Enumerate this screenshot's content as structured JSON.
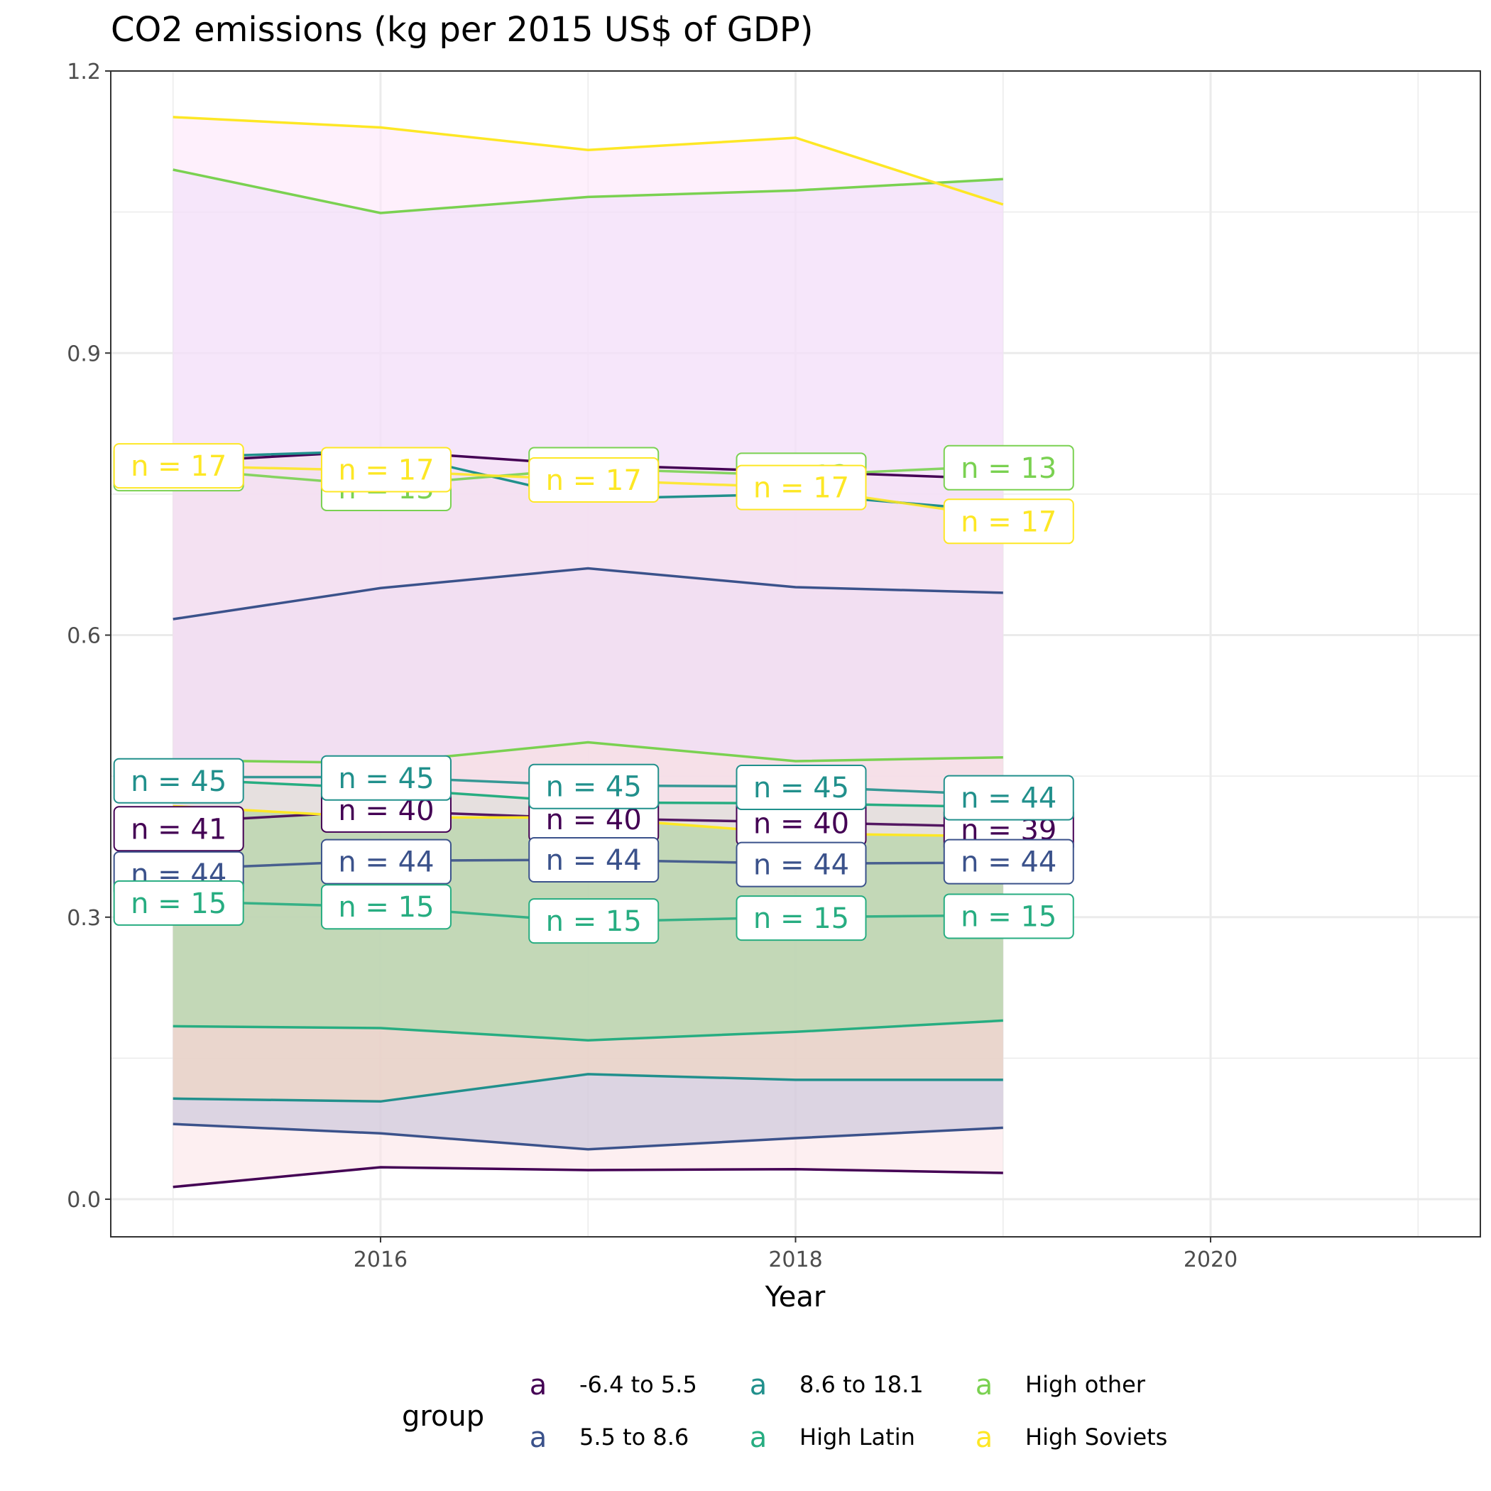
{
  "chart_data": {
    "type": "area",
    "title": "CO2 emissions (kg per 2015 US$ of GDP)",
    "xlabel": "Year",
    "ylabel": "",
    "xlim": [
      2014.7,
      2021.3
    ],
    "ylim": [
      -0.04,
      1.2
    ],
    "x_ticks": [
      2016,
      2018,
      2020
    ],
    "y_ticks": [
      0.0,
      0.3,
      0.6,
      0.9,
      1.2
    ],
    "y_tick_labels": [
      "0.0",
      "0.3",
      "0.6",
      "0.9",
      "1.2"
    ],
    "grid": true,
    "legend_position": "bottom",
    "legend_title": "group",
    "legend_key_glyph": "a",
    "x": [
      2015,
      2016,
      2017,
      2018,
      2019
    ],
    "series": [
      {
        "name": "-6.4 to 5.5",
        "color": "#440154",
        "fill": "#fbe4e8",
        "low": [
          0.013,
          0.034,
          0.031,
          0.032,
          0.028
        ],
        "mean": [
          0.401,
          0.413,
          0.405,
          0.401,
          0.396
        ],
        "high": [
          0.784,
          0.796,
          0.781,
          0.774,
          0.766
        ],
        "n_labels": [
          "n = 41",
          "n = 40",
          "n = 40",
          "n = 40",
          "n = 39"
        ],
        "n_label_y": [
          0.394,
          0.414,
          0.404,
          0.4,
          0.393
        ]
      },
      {
        "name": "5.5 to 8.6",
        "color": "#3b528b",
        "fill": "#c6c2d9",
        "low": [
          0.08,
          0.07,
          0.053,
          0.065,
          0.076
        ],
        "mean": [
          0.351,
          0.36,
          0.361,
          0.357,
          0.358
        ],
        "high": [
          0.617,
          0.65,
          0.671,
          0.651,
          0.645
        ],
        "n_labels": [
          "n = 44",
          "n = 44",
          "n = 44",
          "n = 44",
          "n = 44"
        ],
        "n_label_y": [
          0.346,
          0.359,
          0.361,
          0.356,
          0.359
        ]
      },
      {
        "name": "8.6 to 18.1",
        "color": "#21908c",
        "fill": "#f3d7bf",
        "low": [
          0.107,
          0.104,
          0.133,
          0.127,
          0.127
        ],
        "mean": [
          0.449,
          0.449,
          0.44,
          0.439,
          0.43
        ],
        "high": [
          0.789,
          0.796,
          0.745,
          0.75,
          0.732
        ],
        "n_labels": [
          "n = 45",
          "n = 45",
          "n = 45",
          "n = 45",
          "n = 44"
        ],
        "n_label_y": [
          0.445,
          0.448,
          0.439,
          0.438,
          0.427
        ]
      },
      {
        "name": "High Latin",
        "color": "#27ad81",
        "fill": "#a8d8a8",
        "low": [
          0.184,
          0.182,
          0.169,
          0.178,
          0.19
        ],
        "mean": [
          0.317,
          0.311,
          0.295,
          0.3,
          0.302
        ],
        "high": [
          0.447,
          0.437,
          0.422,
          0.421,
          0.417
        ],
        "n_labels": [
          "n = 15",
          "n = 15",
          "n = 15",
          "n = 15",
          "n = 15"
        ],
        "n_label_y": [
          0.315,
          0.311,
          0.296,
          0.299,
          0.301
        ]
      },
      {
        "name": "High other",
        "color": "#7ad151",
        "fill": "#dcd4f5",
        "low": [
          0.467,
          0.464,
          0.486,
          0.466,
          0.47
        ],
        "mean": [
          0.777,
          0.759,
          0.777,
          0.77,
          0.78
        ],
        "high": [
          1.095,
          1.049,
          1.066,
          1.073,
          1.085
        ],
        "n_labels": [
          "n = 13",
          "n = 13",
          "n = 13",
          "n = 13",
          "n = 13"
        ],
        "n_label_y": [
          0.777,
          0.756,
          0.776,
          0.77,
          0.778
        ]
      },
      {
        "name": "High Soviets",
        "color": "#fde725",
        "fill": "#fde6fa",
        "low": [
          0.418,
          0.406,
          0.406,
          0.389,
          0.386
        ],
        "mean": [
          0.78,
          0.775,
          0.765,
          0.757,
          0.725
        ],
        "high": [
          1.151,
          1.14,
          1.116,
          1.129,
          1.058
        ],
        "n_labels": [
          "n = 17",
          "n = 17",
          "n = 17",
          "n = 17",
          "n = 17"
        ],
        "n_label_y": [
          0.78,
          0.776,
          0.765,
          0.757,
          0.721
        ]
      }
    ]
  }
}
